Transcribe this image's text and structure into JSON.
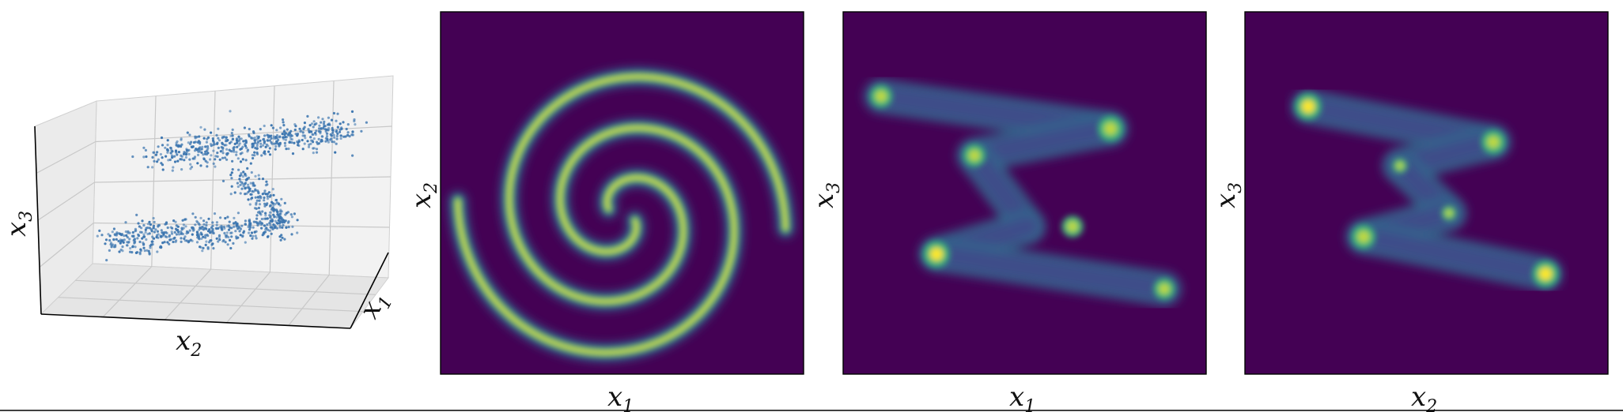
{
  "chart_data": [
    {
      "type": "scatter",
      "projection": "3d",
      "description_of_content": "3D scatter of a point cloud shaped like an S / Z (two horizontal bands connected by a diagonal), viewed in perspective",
      "xlabel": "x_1",
      "ylabel": "x_2",
      "zlabel": "x_3",
      "xlabel_text": {
        "base": "x",
        "sub": "1"
      },
      "ylabel_text": {
        "base": "x",
        "sub": "2"
      },
      "zlabel_text": {
        "base": "x",
        "sub": "3"
      },
      "grid": true,
      "marker_color": "#3b75af",
      "tick_labels": false,
      "clusters": [
        {
          "band": "upper",
          "z": 0.75,
          "x_range": [
            0.1,
            0.9
          ],
          "y_range": [
            -0.2,
            1.0
          ]
        },
        {
          "band": "middle-diagonal",
          "z_range": [
            0.3,
            0.7
          ]
        },
        {
          "band": "lower",
          "z": 0.15,
          "x_range": [
            0.1,
            0.9
          ],
          "y_range": [
            -1.0,
            0.3
          ]
        }
      ]
    },
    {
      "type": "heatmap",
      "description_of_content": "Two-arm spiral density in the x1–x2 plane",
      "xlabel": "x_1",
      "ylabel": "x_2",
      "xlabel_text": {
        "base": "x",
        "sub": "1"
      },
      "ylabel_text": {
        "base": "x",
        "sub": "2"
      },
      "colormap": "viridis",
      "shape": "spiral",
      "arms": 2,
      "turns": 1.4,
      "tick_labels": false
    },
    {
      "type": "heatmap",
      "description_of_content": "Zig-zag density in the x1–x3 plane with bright endpoints",
      "xlabel": "x_1",
      "ylabel": "x_3",
      "xlabel_text": {
        "base": "x",
        "sub": "1"
      },
      "ylabel_text": {
        "base": "x",
        "sub": "3"
      },
      "colormap": "viridis",
      "shape": "zigzag",
      "tick_labels": false
    },
    {
      "type": "heatmap",
      "description_of_content": "Zig-zag density in the x2–x3 plane with bright endpoints",
      "xlabel": "x_2",
      "ylabel": "x_3",
      "xlabel_text": {
        "base": "x",
        "sub": "2"
      },
      "ylabel_text": {
        "base": "x",
        "sub": "3"
      },
      "colormap": "viridis",
      "shape": "zigzag",
      "tick_labels": false
    }
  ],
  "colors": {
    "viridis_dark": "#440154",
    "viridis_mid": "#31688e",
    "viridis_green": "#35b779",
    "viridis_yellow": "#fde725",
    "scatter_blue": "#3b75af",
    "pane_gray": "#f2f2f2",
    "grid_gray": "#c8c8c8",
    "axis_black": "#000000"
  }
}
